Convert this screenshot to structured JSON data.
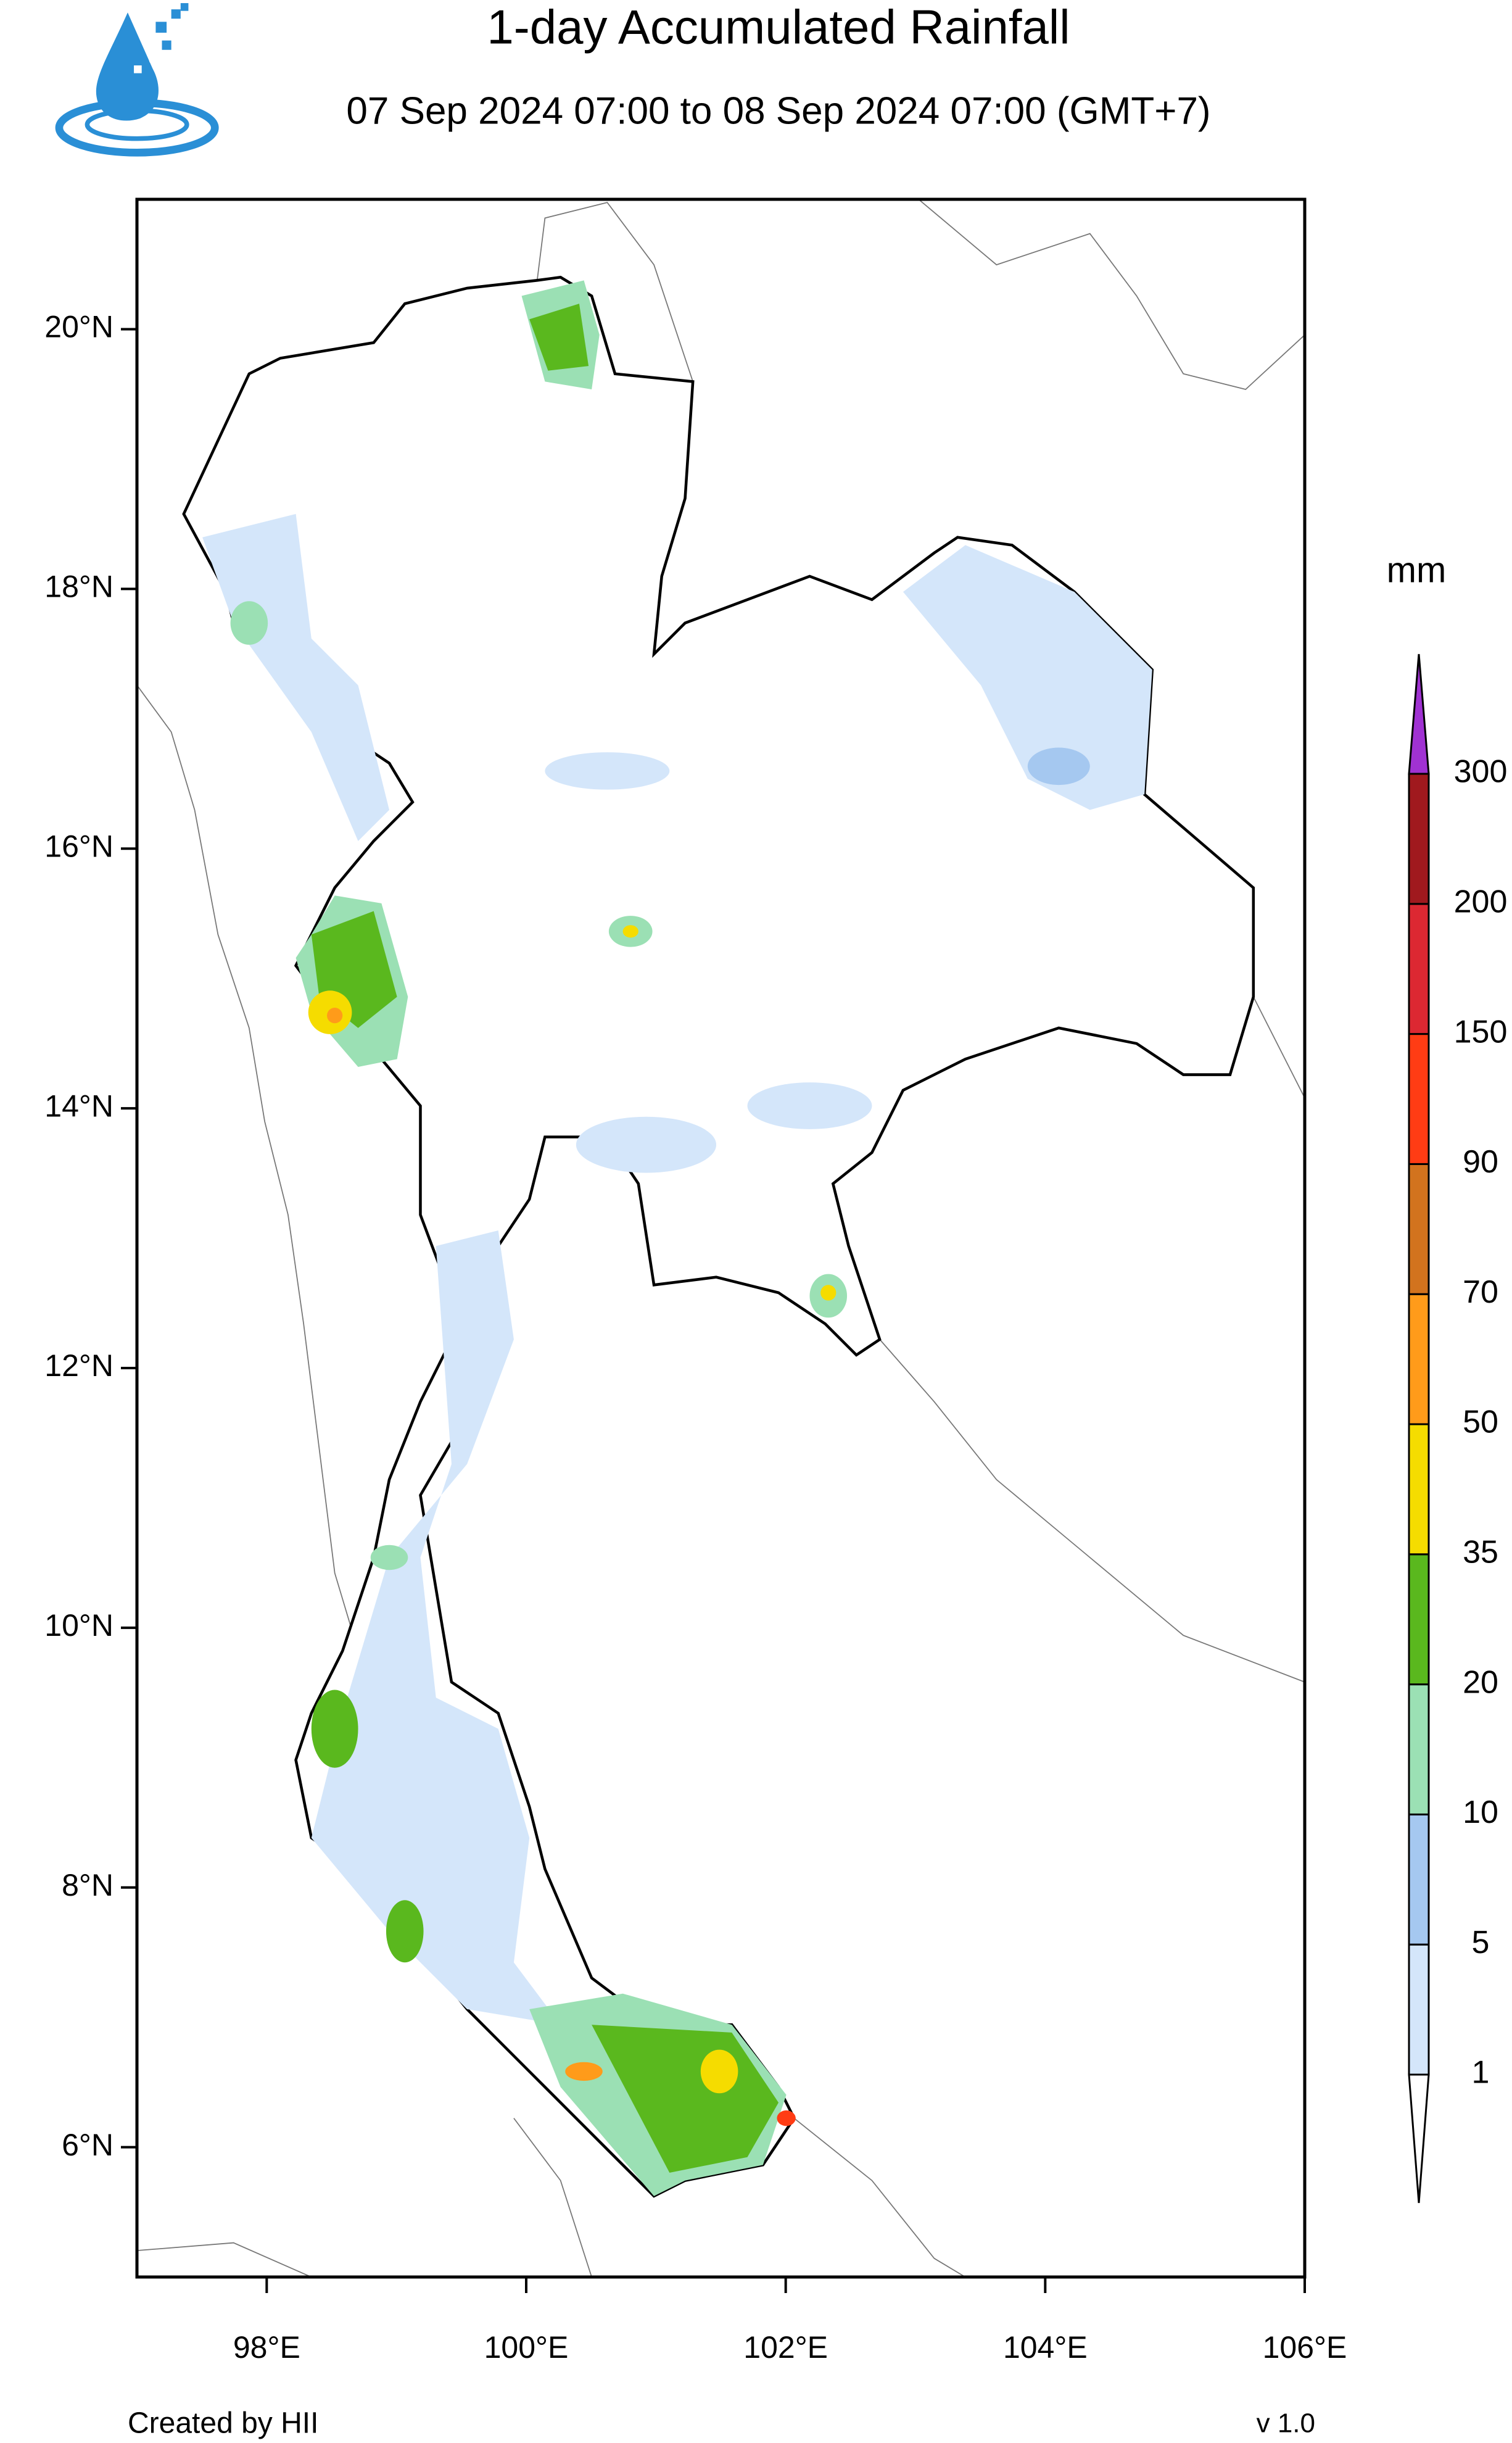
{
  "header": {
    "title": "1-day Accumulated Rainfall",
    "subtitle": "07 Sep 2024 07:00 to 08 Sep 2024 07:00 (GMT+7)"
  },
  "map": {
    "xlim": [
      97,
      106
    ],
    "ylim": [
      5,
      21
    ],
    "xticks": [
      {
        "value": 98,
        "label": "98°E"
      },
      {
        "value": 100,
        "label": "100°E"
      },
      {
        "value": 102,
        "label": "102°E"
      },
      {
        "value": 104,
        "label": "104°E"
      },
      {
        "value": 106,
        "label": "106°E"
      }
    ],
    "yticks": [
      {
        "value": 6,
        "label": "6°N"
      },
      {
        "value": 8,
        "label": "8°N"
      },
      {
        "value": 10,
        "label": "10°N"
      },
      {
        "value": 12,
        "label": "12°N"
      },
      {
        "value": 14,
        "label": "14°N"
      },
      {
        "value": 16,
        "label": "16°N"
      },
      {
        "value": 18,
        "label": "18°N"
      },
      {
        "value": 20,
        "label": "20°N"
      }
    ]
  },
  "colorbar": {
    "title": "mm",
    "levels": [
      1,
      5,
      10,
      20,
      35,
      50,
      70,
      90,
      150,
      200,
      300
    ],
    "colors": [
      "#ffffff",
      "#d4e6fa",
      "#a5c8f0",
      "#9be0b4",
      "#5ab81e",
      "#f5dc00",
      "#ff9b1a",
      "#d2731e",
      "#ff3c14",
      "#dc2832",
      "#a0191e",
      "#a032d2"
    ]
  },
  "footer": {
    "credit": "Created by HII",
    "version": "v 1.0"
  }
}
